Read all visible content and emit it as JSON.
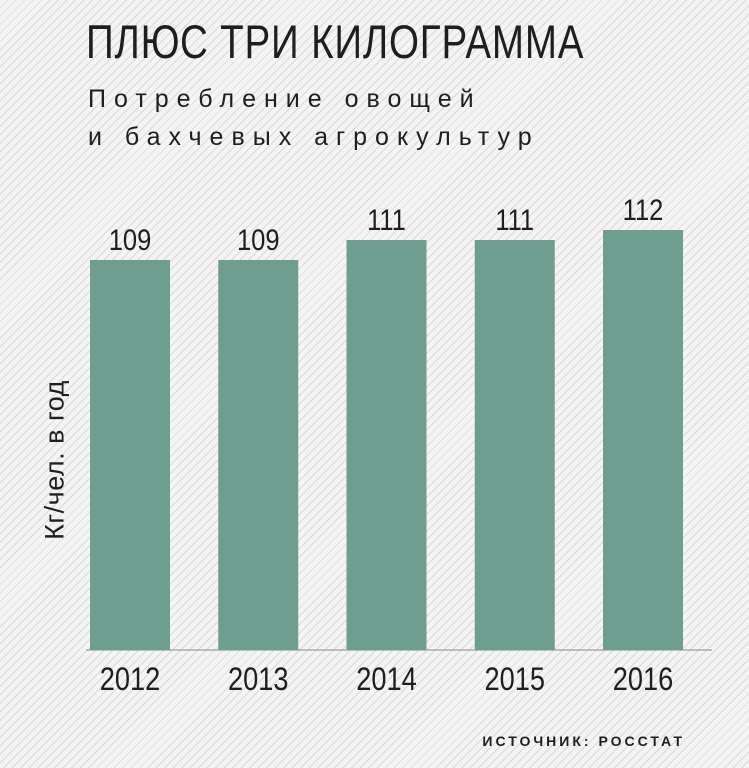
{
  "chart_data": {
    "type": "bar",
    "title": "ПЛЮС ТРИ КИЛОГРАММА",
    "subtitle_lines": [
      "Потребление овощей",
      "и бахчевых агрокультур"
    ],
    "ylabel": "Кг/чел. в год",
    "xlabel": "",
    "categories": [
      "2012",
      "2013",
      "2014",
      "2015",
      "2016"
    ],
    "values": [
      109,
      109,
      111,
      111,
      112
    ],
    "bar_color": "#6f9e90",
    "grid": false,
    "legend": "none"
  },
  "source": "ИСТОЧНИК: РОССТАТ"
}
